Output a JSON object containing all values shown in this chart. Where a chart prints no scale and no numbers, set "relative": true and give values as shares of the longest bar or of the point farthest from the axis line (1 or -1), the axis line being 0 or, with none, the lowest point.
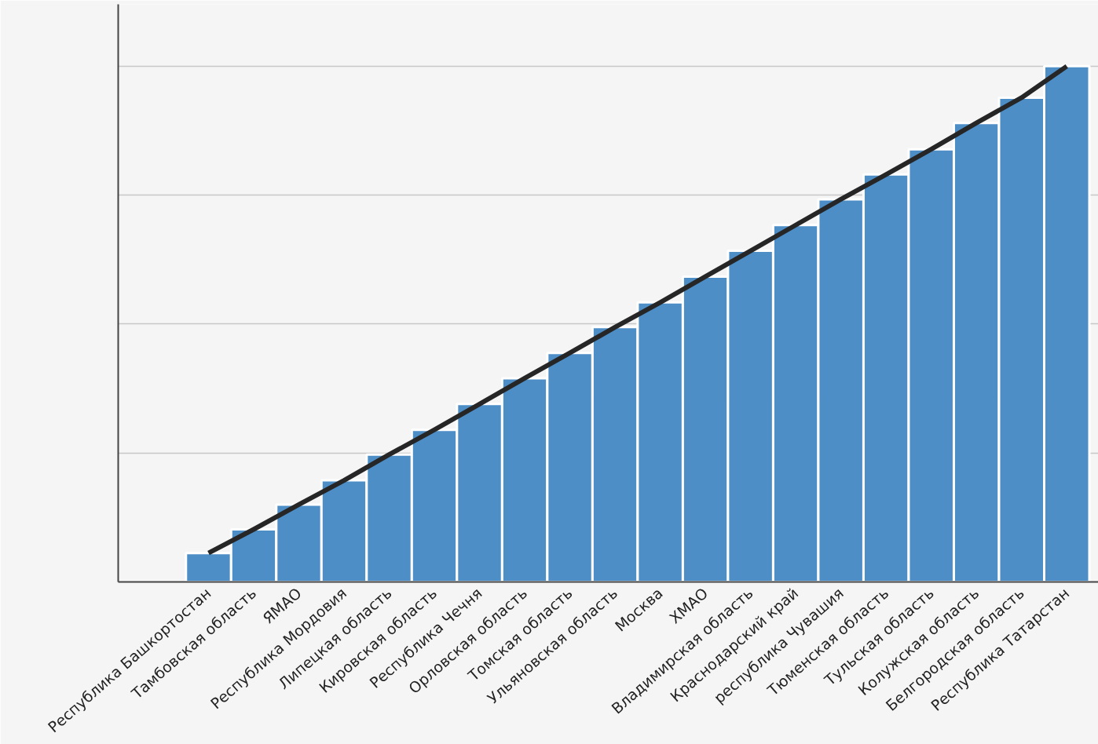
{
  "chart_data": {
    "type": "bar",
    "relative": true,
    "grid": "y",
    "categories": [
      "Республика Башкортостан",
      "Тамбовская область",
      "ЯМАО",
      "Республика Мордовия",
      "Липецкая область",
      "Кировская область",
      "Республика Чечня",
      "Орловская область",
      "Томская область",
      "Ульяновская область",
      "Москва",
      "ХМАО",
      "Владимирская область",
      "Краснодарский край",
      "республика Чувашия",
      "Тюменская область",
      "Тульская область",
      "Колужская область",
      "Белгородская область",
      "Республика Татарстан"
    ],
    "series": [
      {
        "color": "#4d8ec7",
        "values": [
          0.056,
          0.102,
          0.15,
          0.197,
          0.247,
          0.295,
          0.345,
          0.395,
          0.444,
          0.494,
          0.542,
          0.592,
          0.642,
          0.692,
          0.742,
          0.79,
          0.839,
          0.89,
          0.939,
          1
        ]
      },
      {
        "type": "line",
        "color": "#262626",
        "values": [
          0.056,
          0.102,
          0.15,
          0.197,
          0.247,
          0.295,
          0.345,
          0.395,
          0.444,
          0.494,
          0.542,
          0.592,
          0.642,
          0.692,
          0.742,
          0.79,
          0.839,
          0.89,
          0.939,
          1
        ]
      }
    ]
  }
}
